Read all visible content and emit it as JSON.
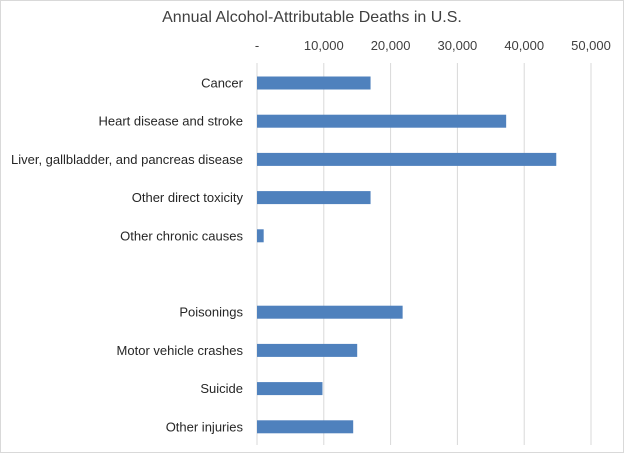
{
  "chart_data": {
    "type": "bar",
    "orientation": "horizontal",
    "title": "Annual Alcohol-Attributable Deaths in U.S.",
    "xlim": [
      0,
      50000
    ],
    "x_ticks": [
      0,
      10000,
      20000,
      30000,
      40000,
      50000
    ],
    "x_tick_labels": [
      "-",
      "10,000",
      "20,000",
      "30,000",
      "40,000",
      "50,000"
    ],
    "x_axis_position": "top",
    "grid": true,
    "categories": [
      "Cancer",
      "Heart disease and stroke",
      "Liver, gallbladder, and pancreas disease",
      "Other direct toxicity",
      "Other chronic causes",
      "",
      "Poisonings",
      "Motor vehicle crashes",
      "Suicide",
      "Other injuries"
    ],
    "values": [
      17000,
      37300,
      44800,
      17000,
      1000,
      null,
      21800,
      15000,
      9800,
      14400
    ],
    "bar_color": "#4f81bd",
    "grid_color": "#d9d9d9"
  }
}
